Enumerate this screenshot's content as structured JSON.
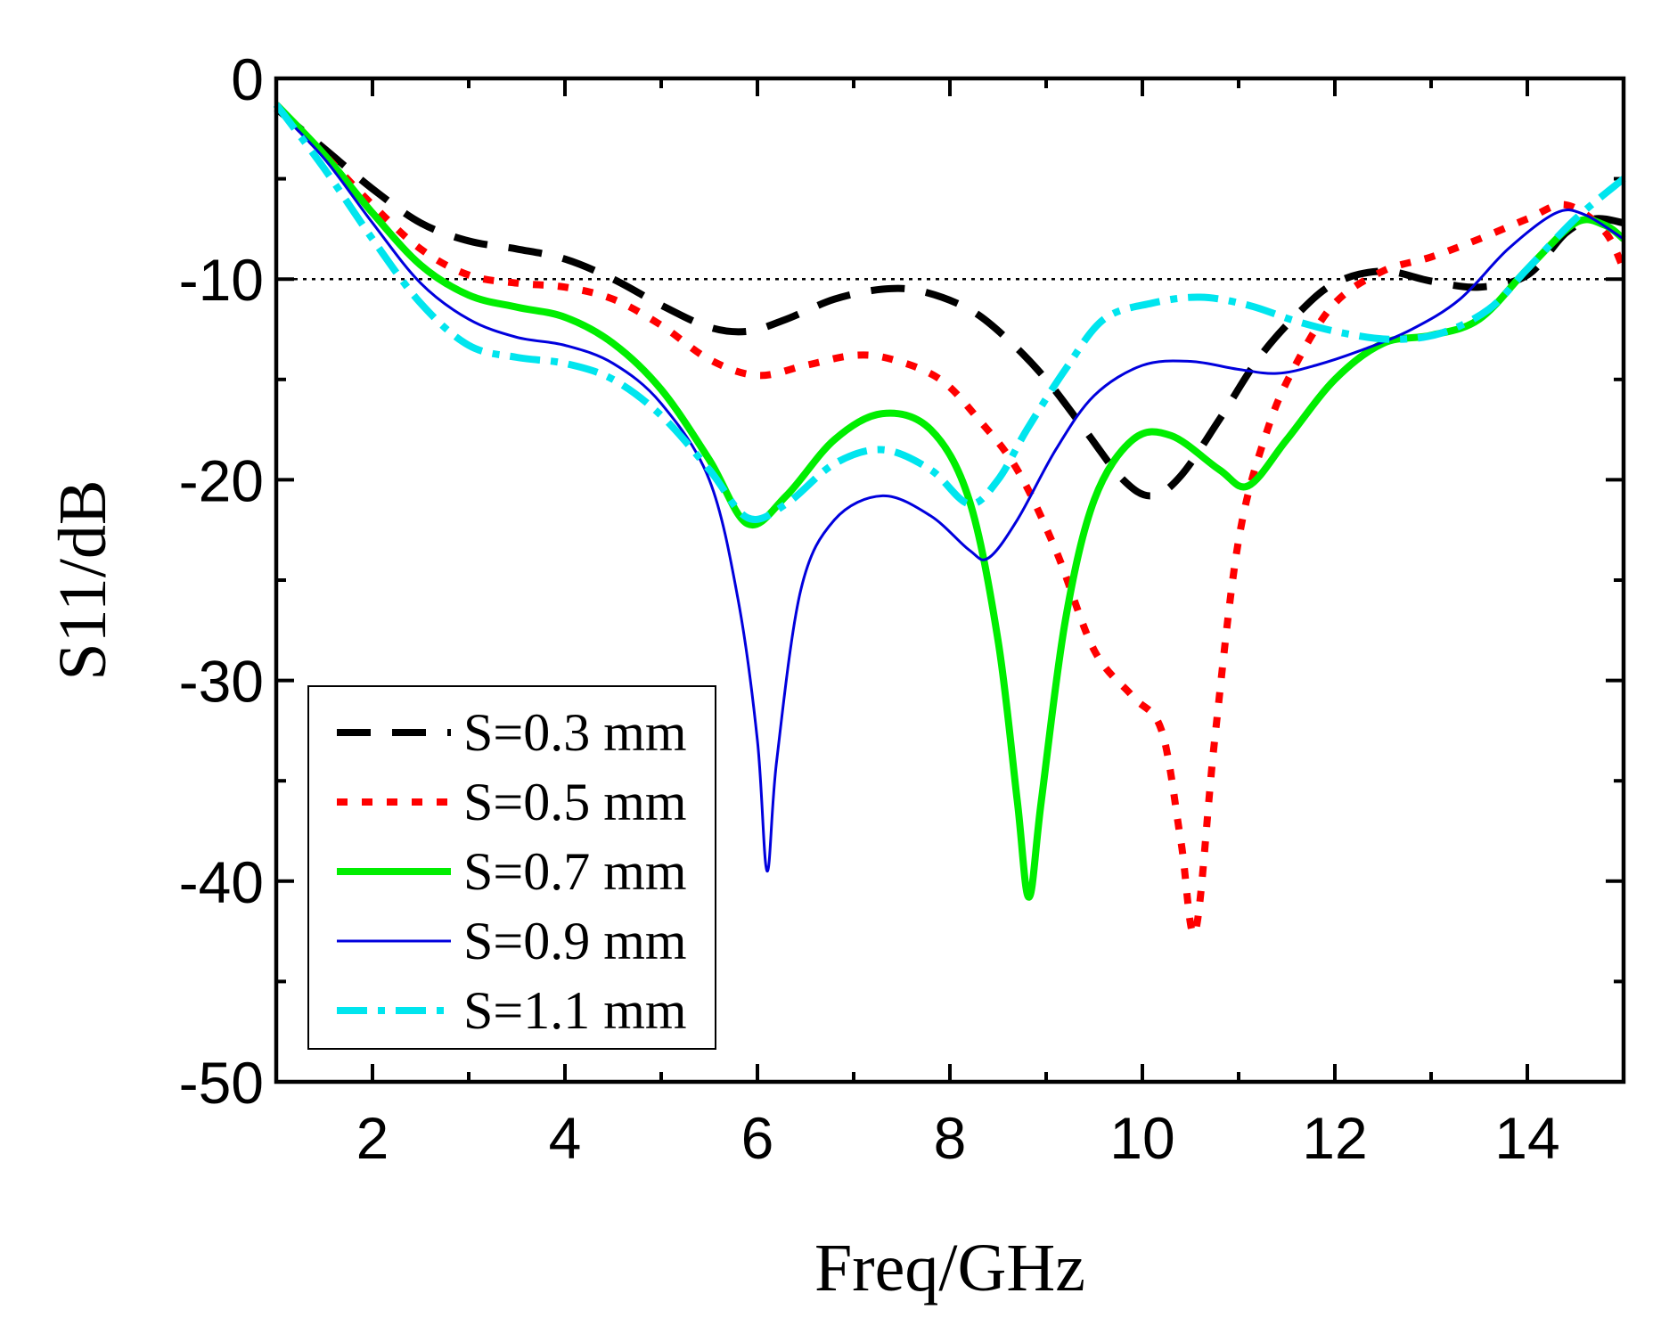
{
  "chart_data": {
    "type": "line",
    "title": "",
    "xlabel": "Freq/GHz",
    "ylabel": "S11/dB",
    "xlim": [
      1,
      15
    ],
    "ylim": [
      -50,
      0
    ],
    "xticks": [
      2,
      4,
      6,
      8,
      10,
      12,
      14
    ],
    "xtick_labels": [
      "2",
      "4",
      "6",
      "8",
      "10",
      "12",
      "14"
    ],
    "yticks": [
      0,
      -10,
      -20,
      -30,
      -40,
      -50
    ],
    "ytick_labels": [
      "0",
      "-10",
      "-20",
      "-30",
      "-40",
      "-50"
    ],
    "grid": false,
    "legend_position": "bottom-left",
    "reference_line": {
      "y": -10,
      "style": "dotted",
      "color": "#000000"
    },
    "series": [
      {
        "name": "S=0.3 mm",
        "color": "#000000",
        "style": "dashed",
        "width": "thick",
        "points": [
          [
            1,
            -1.5
          ],
          [
            1.5,
            -3.5
          ],
          [
            2,
            -5.5
          ],
          [
            2.5,
            -7.2
          ],
          [
            3,
            -8.1
          ],
          [
            3.5,
            -8.5
          ],
          [
            4,
            -9.0
          ],
          [
            4.5,
            -10.0
          ],
          [
            5,
            -11.3
          ],
          [
            5.5,
            -12.4
          ],
          [
            5.9,
            -12.6
          ],
          [
            6.3,
            -12.0
          ],
          [
            6.8,
            -11.0
          ],
          [
            7.3,
            -10.5
          ],
          [
            7.7,
            -10.6
          ],
          [
            8.2,
            -11.5
          ],
          [
            8.6,
            -13.0
          ],
          [
            9.0,
            -15.0
          ],
          [
            9.4,
            -17.5
          ],
          [
            9.8,
            -20.0
          ],
          [
            10.1,
            -20.8
          ],
          [
            10.4,
            -19.8
          ],
          [
            10.8,
            -17.0
          ],
          [
            11.2,
            -14.0
          ],
          [
            11.6,
            -11.8
          ],
          [
            12.0,
            -10.2
          ],
          [
            12.5,
            -9.6
          ],
          [
            13.0,
            -10.1
          ],
          [
            13.5,
            -10.4
          ],
          [
            14.0,
            -9.8
          ],
          [
            14.4,
            -7.7
          ],
          [
            14.7,
            -7.0
          ],
          [
            15,
            -7.2
          ]
        ]
      },
      {
        "name": "S=0.5 mm",
        "color": "#ff0000",
        "style": "dotted",
        "width": "thick",
        "points": [
          [
            1,
            -1.3
          ],
          [
            1.5,
            -3.8
          ],
          [
            2,
            -6.3
          ],
          [
            2.5,
            -8.5
          ],
          [
            3,
            -9.8
          ],
          [
            3.5,
            -10.2
          ],
          [
            4,
            -10.4
          ],
          [
            4.5,
            -11.0
          ],
          [
            5,
            -12.3
          ],
          [
            5.5,
            -14.0
          ],
          [
            6.0,
            -14.8
          ],
          [
            6.5,
            -14.3
          ],
          [
            7.0,
            -13.8
          ],
          [
            7.4,
            -14.0
          ],
          [
            7.9,
            -15.0
          ],
          [
            8.3,
            -17.0
          ],
          [
            8.7,
            -19.5
          ],
          [
            9.1,
            -23.5
          ],
          [
            9.5,
            -28.5
          ],
          [
            9.9,
            -30.8
          ],
          [
            10.2,
            -32.5
          ],
          [
            10.4,
            -38.0
          ],
          [
            10.55,
            -42.5
          ],
          [
            10.75,
            -33.0
          ],
          [
            11.0,
            -23.0
          ],
          [
            11.3,
            -17.5
          ],
          [
            11.6,
            -14.2
          ],
          [
            12.0,
            -11.2
          ],
          [
            12.5,
            -9.6
          ],
          [
            13.0,
            -8.9
          ],
          [
            13.5,
            -8.0
          ],
          [
            14.0,
            -7.0
          ],
          [
            14.4,
            -6.3
          ],
          [
            14.8,
            -7.6
          ],
          [
            15,
            -9.5
          ]
        ]
      },
      {
        "name": "S=0.7 mm",
        "color": "#00ee00",
        "style": "solid",
        "width": "thick",
        "points": [
          [
            1,
            -1.3
          ],
          [
            1.5,
            -3.8
          ],
          [
            2,
            -6.7
          ],
          [
            2.5,
            -9.3
          ],
          [
            3,
            -10.8
          ],
          [
            3.5,
            -11.4
          ],
          [
            4,
            -11.9
          ],
          [
            4.5,
            -13.2
          ],
          [
            5,
            -15.5
          ],
          [
            5.5,
            -19.0
          ],
          [
            5.9,
            -22.2
          ],
          [
            6.3,
            -20.8
          ],
          [
            6.8,
            -18.0
          ],
          [
            7.3,
            -16.7
          ],
          [
            7.8,
            -17.5
          ],
          [
            8.2,
            -21.0
          ],
          [
            8.5,
            -28.0
          ],
          [
            8.7,
            -36.0
          ],
          [
            8.82,
            -40.8
          ],
          [
            8.95,
            -36.0
          ],
          [
            9.2,
            -27.0
          ],
          [
            9.5,
            -21.0
          ],
          [
            9.9,
            -18.0
          ],
          [
            10.3,
            -17.8
          ],
          [
            10.8,
            -19.5
          ],
          [
            11.1,
            -20.3
          ],
          [
            11.5,
            -18.0
          ],
          [
            12.0,
            -15.0
          ],
          [
            12.5,
            -13.2
          ],
          [
            13.0,
            -12.8
          ],
          [
            13.5,
            -12.0
          ],
          [
            14.0,
            -9.5
          ],
          [
            14.5,
            -7.2
          ],
          [
            14.8,
            -7.3
          ],
          [
            15,
            -8.0
          ]
        ]
      },
      {
        "name": "S=0.9 mm",
        "color": "#0000dd",
        "style": "solid",
        "width": "thin",
        "points": [
          [
            1,
            -1.5
          ],
          [
            1.5,
            -4.0
          ],
          [
            2,
            -7.2
          ],
          [
            2.5,
            -10.2
          ],
          [
            3,
            -12.0
          ],
          [
            3.5,
            -12.9
          ],
          [
            4,
            -13.3
          ],
          [
            4.5,
            -14.2
          ],
          [
            5,
            -16.2
          ],
          [
            5.5,
            -20.0
          ],
          [
            5.8,
            -26.0
          ],
          [
            6.0,
            -33.0
          ],
          [
            6.1,
            -39.5
          ],
          [
            6.2,
            -34.0
          ],
          [
            6.45,
            -25.5
          ],
          [
            6.8,
            -22.0
          ],
          [
            7.3,
            -20.8
          ],
          [
            7.8,
            -21.8
          ],
          [
            8.2,
            -23.5
          ],
          [
            8.4,
            -23.9
          ],
          [
            8.7,
            -22.0
          ],
          [
            9.1,
            -18.5
          ],
          [
            9.5,
            -15.8
          ],
          [
            10.0,
            -14.3
          ],
          [
            10.5,
            -14.1
          ],
          [
            11.0,
            -14.5
          ],
          [
            11.4,
            -14.7
          ],
          [
            11.8,
            -14.3
          ],
          [
            12.3,
            -13.5
          ],
          [
            12.8,
            -12.5
          ],
          [
            13.3,
            -11.0
          ],
          [
            13.8,
            -8.5
          ],
          [
            14.3,
            -6.7
          ],
          [
            14.6,
            -6.8
          ],
          [
            15,
            -8.0
          ]
        ]
      },
      {
        "name": "S=1.1 mm",
        "color": "#00e5ee",
        "style": "dashdot",
        "width": "thick",
        "points": [
          [
            1,
            -1.3
          ],
          [
            1.5,
            -4.5
          ],
          [
            2,
            -8.0
          ],
          [
            2.5,
            -11.2
          ],
          [
            3,
            -13.3
          ],
          [
            3.5,
            -13.9
          ],
          [
            4,
            -14.2
          ],
          [
            4.5,
            -15.0
          ],
          [
            5,
            -16.8
          ],
          [
            5.5,
            -19.5
          ],
          [
            5.9,
            -21.9
          ],
          [
            6.3,
            -21.2
          ],
          [
            6.8,
            -19.2
          ],
          [
            7.3,
            -18.5
          ],
          [
            7.8,
            -19.5
          ],
          [
            8.2,
            -21.2
          ],
          [
            8.5,
            -20.0
          ],
          [
            8.8,
            -17.5
          ],
          [
            9.2,
            -14.5
          ],
          [
            9.6,
            -12.0
          ],
          [
            10.1,
            -11.2
          ],
          [
            10.6,
            -10.9
          ],
          [
            11.1,
            -11.3
          ],
          [
            11.6,
            -12.1
          ],
          [
            12.1,
            -12.7
          ],
          [
            12.6,
            -13.0
          ],
          [
            13.1,
            -12.7
          ],
          [
            13.6,
            -11.5
          ],
          [
            14.0,
            -9.5
          ],
          [
            14.5,
            -7.0
          ],
          [
            15,
            -5.0
          ]
        ]
      }
    ]
  }
}
